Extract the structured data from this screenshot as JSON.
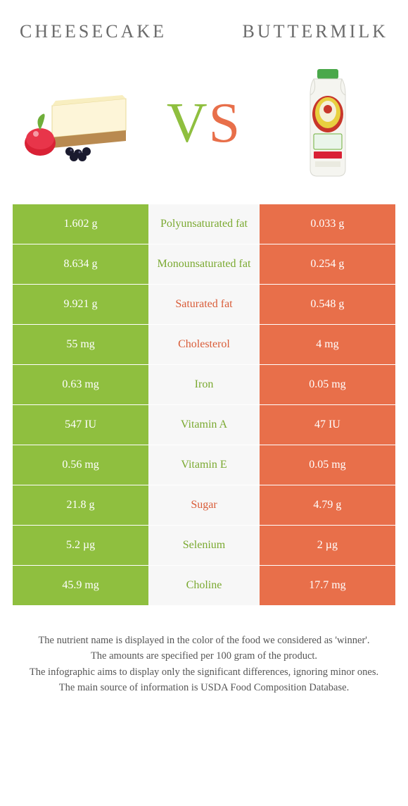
{
  "header": {
    "left": "Cheesecake",
    "right": "Buttermilk"
  },
  "vs": {
    "v": "V",
    "s": "S"
  },
  "colors": {
    "green": "#8fbf3f",
    "orange": "#e86f4a",
    "mid_bg": "#f7f7f7",
    "mid_green": "#7aa930",
    "mid_orange": "#d95c38"
  },
  "rows": [
    {
      "left": "1.602 g",
      "label": "Polyunsaturated fat",
      "right": "0.033 g",
      "winner": "green"
    },
    {
      "left": "8.634 g",
      "label": "Monounsaturated fat",
      "right": "0.254 g",
      "winner": "green"
    },
    {
      "left": "9.921 g",
      "label": "Saturated fat",
      "right": "0.548 g",
      "winner": "orange"
    },
    {
      "left": "55 mg",
      "label": "Cholesterol",
      "right": "4 mg",
      "winner": "orange"
    },
    {
      "left": "0.63 mg",
      "label": "Iron",
      "right": "0.05 mg",
      "winner": "green"
    },
    {
      "left": "547 IU",
      "label": "Vitamin A",
      "right": "47 IU",
      "winner": "green"
    },
    {
      "left": "0.56 mg",
      "label": "Vitamin E",
      "right": "0.05 mg",
      "winner": "green"
    },
    {
      "left": "21.8 g",
      "label": "Sugar",
      "right": "4.79 g",
      "winner": "orange"
    },
    {
      "left": "5.2 µg",
      "label": "Selenium",
      "right": "2 µg",
      "winner": "green"
    },
    {
      "left": "45.9 mg",
      "label": "Choline",
      "right": "17.7 mg",
      "winner": "green"
    }
  ],
  "notes": [
    "The nutrient name is displayed in the color of the food we considered as 'winner'.",
    "The amounts are specified per 100 gram of the product.",
    "The infographic aims to display only the significant differences, ignoring minor ones.",
    "The main source of information is USDA Food Composition Database."
  ]
}
